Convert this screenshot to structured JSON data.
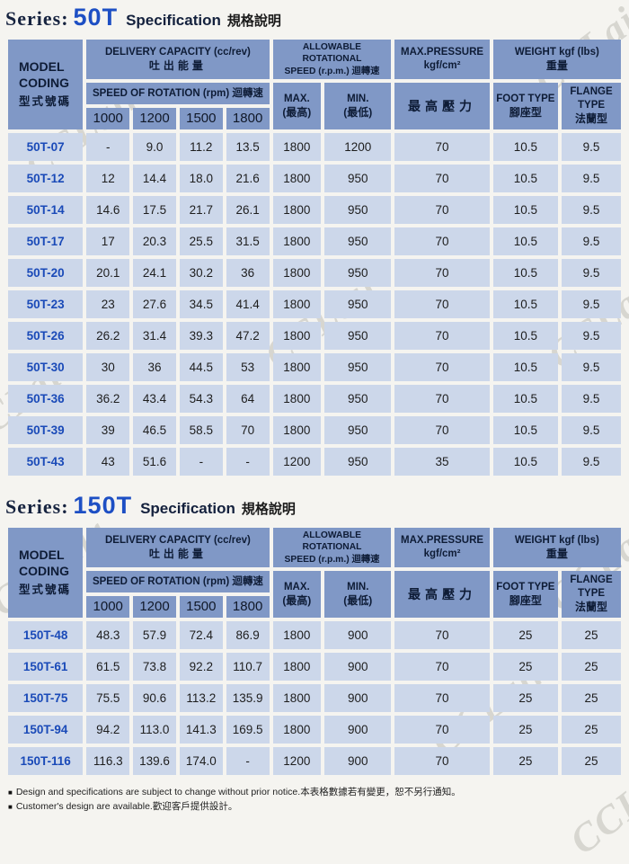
{
  "watermark": "CCLair",
  "header": {
    "model_l1": "MODEL",
    "model_l2": "CODING",
    "model_l3": "型式號碼",
    "delivery_en": "DELIVERY CAPACITY (cc/rev)",
    "delivery_zh": "吐出能量",
    "speed_rotation": "SPEED OF ROTATION (rpm) 迴轉速",
    "speeds": [
      "1000",
      "1200",
      "1500",
      "1800"
    ],
    "allowable_l1": "ALLOWABLE ROTATIONAL",
    "allowable_l2": "SPEED (r.p.m.) 迴轉速",
    "max_en": "MAX.",
    "max_zh": "(最高)",
    "min_en": "MIN.",
    "min_zh": "(最低)",
    "pressure_l1": "MAX.PRESSURE",
    "pressure_l2": "kgf/cm²",
    "pressure_zh": "最高壓力",
    "weight_en": "WEIGHT kgf (lbs)",
    "weight_zh": "重量",
    "foot_en": "FOOT TYPE",
    "foot_zh": "腳座型",
    "flange_en": "FLANGE TYPE",
    "flange_zh": "法蘭型"
  },
  "tables": [
    {
      "series_label": "Series:",
      "series_code": "50T",
      "spec_en": "Specification",
      "spec_zh": "規格說明",
      "rows": [
        [
          "50T-07",
          "-",
          "9.0",
          "11.2",
          "13.5",
          "1800",
          "1200",
          "70",
          "10.5",
          "9.5"
        ],
        [
          "50T-12",
          "12",
          "14.4",
          "18.0",
          "21.6",
          "1800",
          "950",
          "70",
          "10.5",
          "9.5"
        ],
        [
          "50T-14",
          "14.6",
          "17.5",
          "21.7",
          "26.1",
          "1800",
          "950",
          "70",
          "10.5",
          "9.5"
        ],
        [
          "50T-17",
          "17",
          "20.3",
          "25.5",
          "31.5",
          "1800",
          "950",
          "70",
          "10.5",
          "9.5"
        ],
        [
          "50T-20",
          "20.1",
          "24.1",
          "30.2",
          "36",
          "1800",
          "950",
          "70",
          "10.5",
          "9.5"
        ],
        [
          "50T-23",
          "23",
          "27.6",
          "34.5",
          "41.4",
          "1800",
          "950",
          "70",
          "10.5",
          "9.5"
        ],
        [
          "50T-26",
          "26.2",
          "31.4",
          "39.3",
          "47.2",
          "1800",
          "950",
          "70",
          "10.5",
          "9.5"
        ],
        [
          "50T-30",
          "30",
          "36",
          "44.5",
          "53",
          "1800",
          "950",
          "70",
          "10.5",
          "9.5"
        ],
        [
          "50T-36",
          "36.2",
          "43.4",
          "54.3",
          "64",
          "1800",
          "950",
          "70",
          "10.5",
          "9.5"
        ],
        [
          "50T-39",
          "39",
          "46.5",
          "58.5",
          "70",
          "1800",
          "950",
          "70",
          "10.5",
          "9.5"
        ],
        [
          "50T-43",
          "43",
          "51.6",
          "-",
          "-",
          "1200",
          "950",
          "35",
          "10.5",
          "9.5"
        ]
      ]
    },
    {
      "series_label": "Series:",
      "series_code": "150T",
      "spec_en": "Specification",
      "spec_zh": "規格說明",
      "rows": [
        [
          "150T-48",
          "48.3",
          "57.9",
          "72.4",
          "86.9",
          "1800",
          "900",
          "70",
          "25",
          "25"
        ],
        [
          "150T-61",
          "61.5",
          "73.8",
          "92.2",
          "110.7",
          "1800",
          "900",
          "70",
          "25",
          "25"
        ],
        [
          "150T-75",
          "75.5",
          "90.6",
          "113.2",
          "135.9",
          "1800",
          "900",
          "70",
          "25",
          "25"
        ],
        [
          "150T-94",
          "94.2",
          "113.0",
          "141.3",
          "169.5",
          "1800",
          "900",
          "70",
          "25",
          "25"
        ],
        [
          "150T-116",
          "116.3",
          "139.6",
          "174.0",
          "-",
          "1200",
          "900",
          "70",
          "25",
          "25"
        ]
      ]
    }
  ],
  "footnote_bullet": "■",
  "footnotes": [
    "Design and specifications are subject to change without prior notice.本表格數據若有變更，恕不另行通知。",
    "Customer's design are available.歡迎客戶提供設計。"
  ],
  "colors": {
    "header_bg": "#8098c6",
    "cell_bg": "#ccd7ea",
    "model_code_blue": "#1a4ab8",
    "accent_blue": "#1d4fc4",
    "title_navy": "#14213d"
  }
}
